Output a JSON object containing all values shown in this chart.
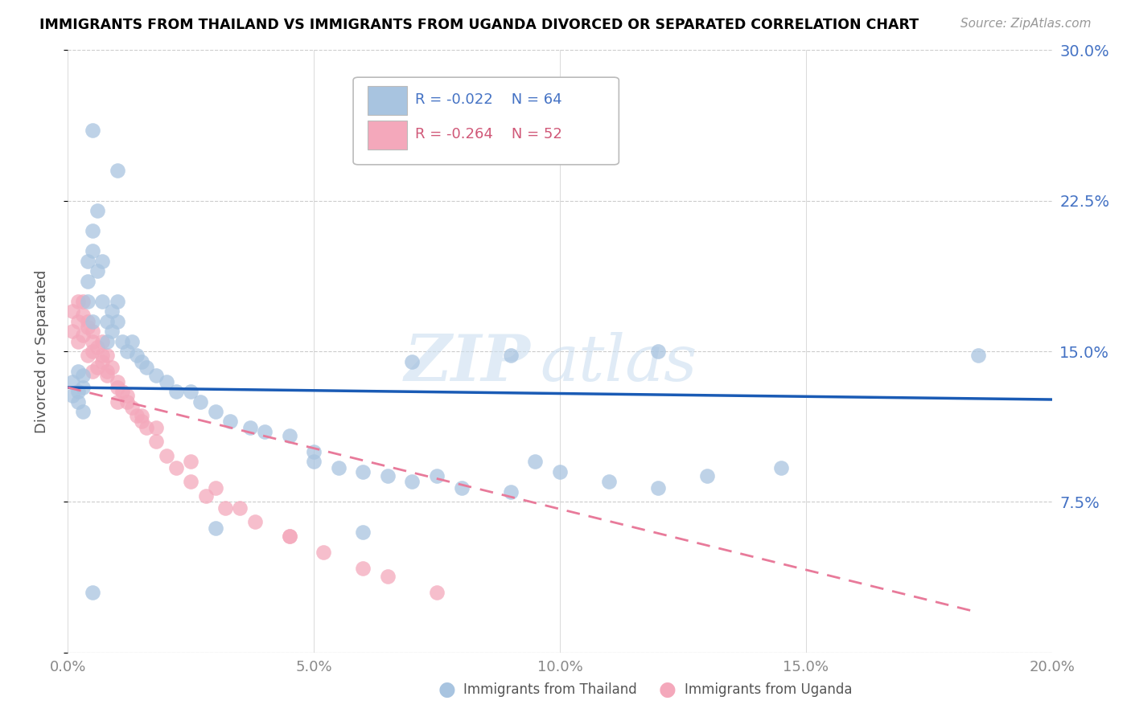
{
  "title": "IMMIGRANTS FROM THAILAND VS IMMIGRANTS FROM UGANDA DIVORCED OR SEPARATED CORRELATION CHART",
  "source": "Source: ZipAtlas.com",
  "ylabel": "Divorced or Separated",
  "yticks": [
    0.0,
    0.075,
    0.15,
    0.225,
    0.3
  ],
  "ytick_labels": [
    "",
    "7.5%",
    "15.0%",
    "22.5%",
    "30.0%"
  ],
  "xticks": [
    0.0,
    0.05,
    0.1,
    0.15,
    0.2
  ],
  "xtick_labels": [
    "0.0%",
    "5.0%",
    "10.0%",
    "15.0%",
    "20.0%"
  ],
  "xlim": [
    0.0,
    0.2
  ],
  "ylim": [
    0.0,
    0.3
  ],
  "color_thailand": "#a8c4e0",
  "color_uganda": "#f4a8bb",
  "color_line_thailand": "#1a5bb5",
  "color_line_uganda": "#e87a9a",
  "watermark_zip": "ZIP",
  "watermark_atlas": "atlas",
  "thailand_line_x": [
    0.0,
    0.2
  ],
  "thailand_line_y": [
    0.132,
    0.126
  ],
  "uganda_line_x": [
    0.0,
    0.185
  ],
  "uganda_line_y": [
    0.132,
    0.02
  ],
  "thailand_x": [
    0.001,
    0.001,
    0.002,
    0.002,
    0.002,
    0.003,
    0.003,
    0.003,
    0.004,
    0.004,
    0.004,
    0.005,
    0.005,
    0.005,
    0.006,
    0.006,
    0.007,
    0.007,
    0.008,
    0.008,
    0.009,
    0.009,
    0.01,
    0.01,
    0.011,
    0.012,
    0.013,
    0.014,
    0.015,
    0.016,
    0.018,
    0.02,
    0.022,
    0.025,
    0.027,
    0.03,
    0.033,
    0.037,
    0.04,
    0.045,
    0.05,
    0.055,
    0.06,
    0.065,
    0.07,
    0.075,
    0.08,
    0.09,
    0.095,
    0.1,
    0.11,
    0.12,
    0.13,
    0.145,
    0.005,
    0.01,
    0.05,
    0.07,
    0.09,
    0.12,
    0.005,
    0.03,
    0.06,
    0.185
  ],
  "thailand_y": [
    0.135,
    0.128,
    0.14,
    0.13,
    0.125,
    0.138,
    0.132,
    0.12,
    0.195,
    0.185,
    0.175,
    0.21,
    0.2,
    0.165,
    0.22,
    0.19,
    0.195,
    0.175,
    0.165,
    0.155,
    0.17,
    0.16,
    0.175,
    0.165,
    0.155,
    0.15,
    0.155,
    0.148,
    0.145,
    0.142,
    0.138,
    0.135,
    0.13,
    0.13,
    0.125,
    0.12,
    0.115,
    0.112,
    0.11,
    0.108,
    0.095,
    0.092,
    0.09,
    0.088,
    0.085,
    0.088,
    0.082,
    0.08,
    0.095,
    0.09,
    0.085,
    0.082,
    0.088,
    0.092,
    0.26,
    0.24,
    0.1,
    0.145,
    0.148,
    0.15,
    0.03,
    0.062,
    0.06,
    0.148
  ],
  "uganda_x": [
    0.001,
    0.001,
    0.002,
    0.002,
    0.002,
    0.003,
    0.003,
    0.004,
    0.004,
    0.005,
    0.005,
    0.005,
    0.006,
    0.006,
    0.007,
    0.007,
    0.008,
    0.008,
    0.009,
    0.01,
    0.01,
    0.011,
    0.012,
    0.013,
    0.014,
    0.015,
    0.016,
    0.018,
    0.02,
    0.022,
    0.025,
    0.028,
    0.032,
    0.038,
    0.045,
    0.052,
    0.06,
    0.065,
    0.075,
    0.003,
    0.004,
    0.005,
    0.007,
    0.008,
    0.01,
    0.012,
    0.015,
    0.018,
    0.025,
    0.03,
    0.035,
    0.045
  ],
  "uganda_y": [
    0.17,
    0.16,
    0.175,
    0.165,
    0.155,
    0.168,
    0.158,
    0.162,
    0.148,
    0.16,
    0.15,
    0.14,
    0.152,
    0.142,
    0.155,
    0.145,
    0.148,
    0.138,
    0.142,
    0.135,
    0.125,
    0.13,
    0.128,
    0.122,
    0.118,
    0.115,
    0.112,
    0.105,
    0.098,
    0.092,
    0.085,
    0.078,
    0.072,
    0.065,
    0.058,
    0.05,
    0.042,
    0.038,
    0.03,
    0.175,
    0.165,
    0.155,
    0.148,
    0.14,
    0.132,
    0.125,
    0.118,
    0.112,
    0.095,
    0.082,
    0.072,
    0.058
  ]
}
